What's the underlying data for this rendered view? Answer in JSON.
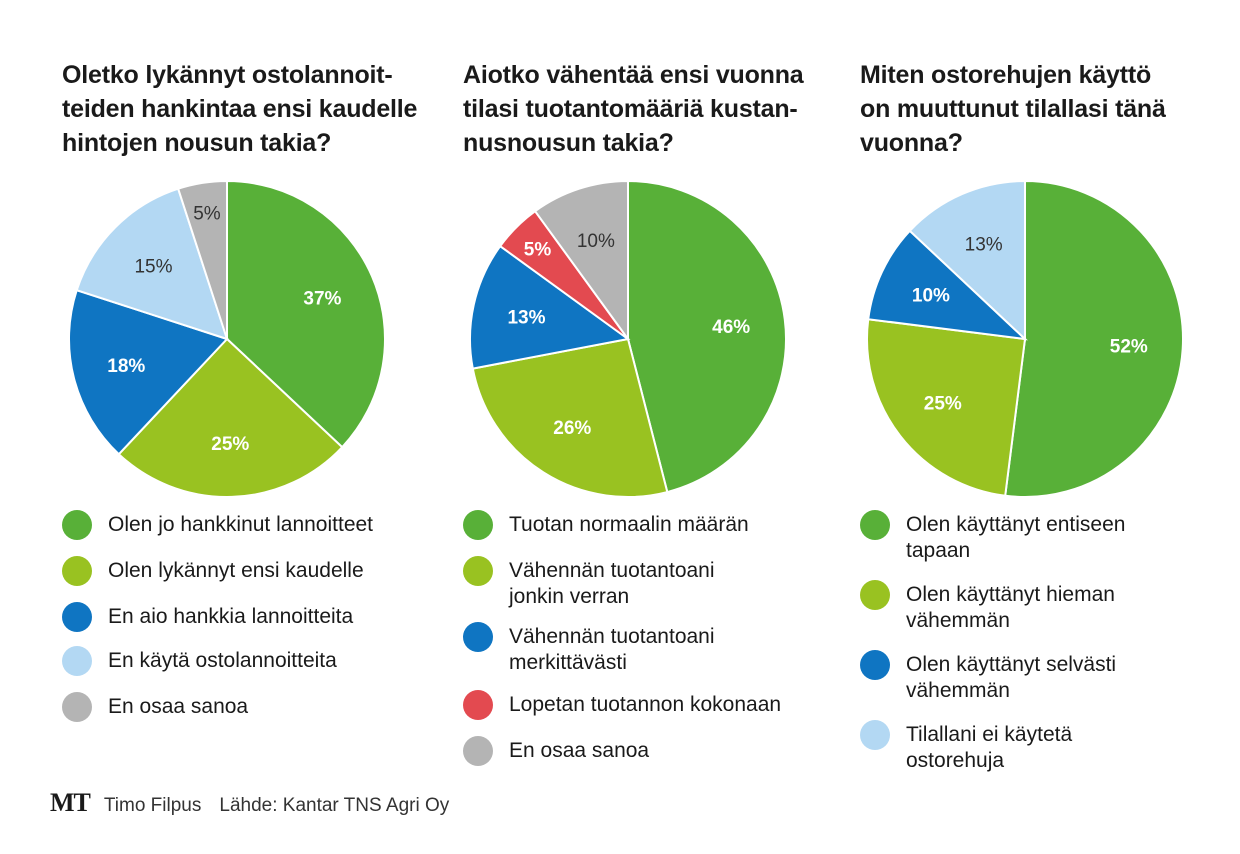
{
  "charts": [
    {
      "title": "Oletko lykännyt ostolannoit-\nteiden hankintaa ensi kaudelle\nhintojen nousun takia?",
      "legend": [
        "Olen jo hankkinut lannoitteet",
        "Olen lykännyt ensi kaudelle",
        "En aio hankkia lannoitteita",
        "En käytä ostolannoitteita",
        "En osaa sanoa"
      ]
    },
    {
      "title": "Aiotko vähentää ensi vuonna\ntilasi tuotantomääriä kustan-\nnusnousun takia?",
      "legend": [
        "Tuotan normaalin määrän",
        "Vähennän tuotantoani\n   jonkin verran",
        "Vähennän tuotantoani\n   merkittävästi",
        "Lopetan tuotannon kokonaan",
        "En osaa sanoa"
      ]
    },
    {
      "title": "Miten ostorehujen käyttö\non muuttunut tilallasi tänä\nvuonna?",
      "legend": [
        "Olen käyttänyt entiseen\ntapaan",
        "Olen käyttänyt hieman\nvähemmän",
        "Olen käyttänyt selvästi\nvähemmän",
        "Tilallani ei käytetä\nostorehuja"
      ]
    }
  ],
  "chart_data": [
    {
      "type": "pie",
      "title": "Oletko lykännyt ostolannoitteiden hankintaa ensi kaudelle hintojen nousun takia?",
      "categories": [
        "Olen jo hankkinut lannoitteet",
        "Olen lykännyt ensi kaudelle",
        "En aio hankkia lannoitteita",
        "En käytä ostolannoitteita",
        "En osaa sanoa"
      ],
      "values": [
        37,
        25,
        18,
        15,
        5
      ],
      "labels": [
        "37%",
        "25%",
        "18%",
        "15%",
        "5%"
      ],
      "colors": [
        "#58b038",
        "#99c221",
        "#0f75c2",
        "#b3d8f3",
        "#b4b4b4"
      ],
      "label_colors": [
        "#ffffff",
        "#ffffff",
        "#ffffff",
        "#333333",
        "#333333"
      ],
      "label_bold": [
        true,
        true,
        true,
        false,
        false
      ]
    },
    {
      "type": "pie",
      "title": "Aiotko vähentää ensi vuonna tilasi tuotantomääriä kustannusnousun takia?",
      "categories": [
        "Tuotan normaalin määrän",
        "Vähennän tuotantoani jonkin verran",
        "Vähennän tuotantoani merkittävästi",
        "Lopetan tuotannon kokonaan",
        "En osaa sanoa"
      ],
      "values": [
        46,
        26,
        13,
        5,
        10
      ],
      "labels": [
        "46%",
        "26%",
        "13%",
        "5%",
        "10%"
      ],
      "colors": [
        "#58b038",
        "#99c221",
        "#0f75c2",
        "#e34a50",
        "#b4b4b4"
      ],
      "label_colors": [
        "#ffffff",
        "#ffffff",
        "#ffffff",
        "#ffffff",
        "#333333"
      ],
      "label_bold": [
        true,
        true,
        true,
        true,
        false
      ]
    },
    {
      "type": "pie",
      "title": "Miten ostorehujen käyttö on muuttunut tilallasi tänä vuonna?",
      "categories": [
        "Olen käyttänyt entiseen tapaan",
        "Olen käyttänyt hieman vähemmän",
        "Olen käyttänyt selvästi vähemmän",
        "Tilallani ei käytetä ostorehuja"
      ],
      "values": [
        52,
        25,
        10,
        13
      ],
      "labels": [
        "52%",
        "25%",
        "10%",
        "13%"
      ],
      "colors": [
        "#58b038",
        "#99c221",
        "#0f75c2",
        "#b3d8f3"
      ],
      "label_colors": [
        "#ffffff",
        "#ffffff",
        "#ffffff",
        "#333333"
      ],
      "label_bold": [
        true,
        true,
        true,
        false
      ]
    }
  ],
  "footer": {
    "logo": "MT",
    "author": "Timo Filpus",
    "source": "Lähde: Kantar TNS Agri Oy"
  }
}
